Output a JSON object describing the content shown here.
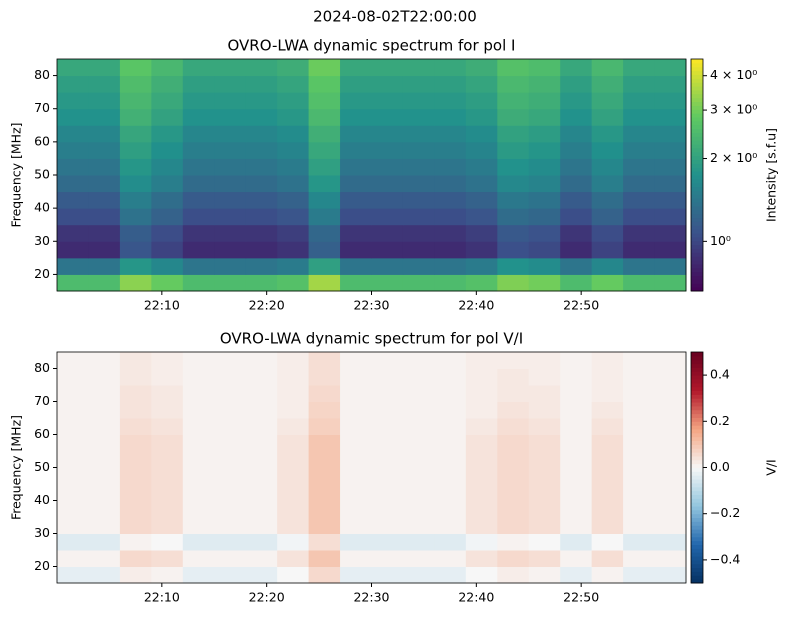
{
  "title": "2024-08-02T22:00:00",
  "chart_data": [
    {
      "type": "heatmap",
      "title": "OVRO-LWA dynamic spectrum for pol I",
      "y_label": "Frequency [MHz]",
      "xlim": [
        "22:00",
        "23:00"
      ],
      "xticks": [
        "22:10",
        "22:20",
        "22:30",
        "22:40",
        "22:50"
      ],
      "ylim": [
        15,
        85
      ],
      "yticks": [
        20,
        30,
        40,
        50,
        60,
        70,
        80
      ],
      "x": [
        "22:00",
        "22:03",
        "22:06",
        "22:09",
        "22:12",
        "22:15",
        "22:18",
        "22:21",
        "22:24",
        "22:27",
        "22:30",
        "22:33",
        "22:36",
        "22:39",
        "22:42",
        "22:45",
        "22:48",
        "22:51",
        "22:54",
        "22:57"
      ],
      "y": [
        15,
        20,
        25,
        30,
        35,
        40,
        45,
        50,
        55,
        60,
        65,
        70,
        75,
        80
      ],
      "z": [
        [
          2.5,
          2.5,
          3.25,
          2.88,
          2.5,
          2.5,
          2.5,
          2.63,
          3.5,
          2.5,
          2.5,
          2.5,
          2.5,
          2.63,
          3.13,
          3.0,
          2.5,
          2.88,
          2.5,
          2.5
        ],
        [
          1.4,
          1.4,
          1.82,
          1.61,
          1.4,
          1.4,
          1.4,
          1.47,
          1.96,
          1.4,
          1.4,
          1.4,
          1.4,
          1.47,
          1.75,
          1.68,
          1.4,
          1.61,
          1.4,
          1.4
        ],
        [
          0.85,
          0.85,
          1.11,
          0.98,
          0.85,
          0.85,
          0.85,
          0.89,
          1.19,
          0.85,
          0.85,
          0.85,
          0.85,
          0.89,
          1.06,
          1.02,
          0.85,
          0.98,
          0.85,
          0.85
        ],
        [
          0.9,
          0.9,
          1.17,
          1.04,
          0.9,
          0.9,
          0.9,
          0.95,
          1.26,
          0.9,
          0.9,
          0.9,
          0.9,
          0.95,
          1.13,
          1.08,
          0.9,
          1.04,
          0.9,
          0.9
        ],
        [
          1.05,
          1.05,
          1.37,
          1.21,
          1.05,
          1.05,
          1.05,
          1.1,
          1.47,
          1.05,
          1.05,
          1.05,
          1.05,
          1.1,
          1.31,
          1.26,
          1.05,
          1.21,
          1.05,
          1.05
        ],
        [
          1.15,
          1.15,
          1.5,
          1.32,
          1.15,
          1.15,
          1.15,
          1.21,
          1.61,
          1.15,
          1.15,
          1.15,
          1.15,
          1.21,
          1.44,
          1.38,
          1.15,
          1.32,
          1.15,
          1.15
        ],
        [
          1.3,
          1.3,
          1.69,
          1.5,
          1.3,
          1.3,
          1.3,
          1.37,
          1.82,
          1.3,
          1.3,
          1.3,
          1.3,
          1.37,
          1.63,
          1.56,
          1.3,
          1.5,
          1.3,
          1.3
        ],
        [
          1.4,
          1.4,
          1.82,
          1.61,
          1.4,
          1.4,
          1.4,
          1.47,
          1.96,
          1.4,
          1.4,
          1.4,
          1.4,
          1.47,
          1.75,
          1.68,
          1.4,
          1.61,
          1.4,
          1.4
        ],
        [
          1.5,
          1.5,
          1.95,
          1.73,
          1.5,
          1.5,
          1.5,
          1.58,
          2.1,
          1.5,
          1.5,
          1.5,
          1.5,
          1.58,
          1.88,
          1.8,
          1.5,
          1.73,
          1.5,
          1.5
        ],
        [
          1.6,
          1.6,
          2.08,
          1.84,
          1.6,
          1.6,
          1.6,
          1.68,
          2.24,
          1.6,
          1.6,
          1.6,
          1.6,
          1.68,
          2.0,
          1.92,
          1.6,
          1.84,
          1.6,
          1.6
        ],
        [
          1.75,
          1.75,
          2.28,
          2.01,
          1.75,
          1.75,
          1.75,
          1.84,
          2.45,
          1.75,
          1.75,
          1.75,
          1.75,
          1.84,
          2.19,
          2.1,
          1.75,
          2.01,
          1.75,
          1.75
        ],
        [
          1.85,
          1.85,
          2.41,
          2.13,
          1.85,
          1.85,
          1.85,
          1.94,
          2.59,
          1.85,
          1.85,
          1.85,
          1.85,
          1.94,
          2.31,
          2.22,
          1.85,
          2.13,
          1.85,
          1.85
        ],
        [
          1.95,
          1.95,
          2.54,
          2.24,
          1.95,
          1.95,
          1.95,
          2.05,
          2.73,
          1.95,
          1.95,
          1.95,
          1.95,
          2.05,
          2.44,
          2.34,
          1.95,
          2.24,
          1.95,
          1.95
        ],
        [
          2.1,
          2.1,
          2.73,
          2.42,
          2.1,
          2.1,
          2.1,
          2.21,
          2.94,
          2.1,
          2.1,
          2.1,
          2.1,
          2.21,
          2.63,
          2.52,
          2.1,
          2.42,
          2.1,
          2.1
        ]
      ],
      "colorbar_label": "Intensity [s.f.u]",
      "clim": [
        0.66,
        4.6
      ],
      "log": true,
      "cticks": [
        {
          "value": 1,
          "label": "10⁰"
        },
        {
          "value": 2,
          "label": "2 × 10⁰"
        },
        {
          "value": 3,
          "label": "3 × 10⁰"
        },
        {
          "value": 4,
          "label": "4 × 10⁰"
        }
      ],
      "colormap": [
        "#440154",
        "#3b528b",
        "#21918c",
        "#5ec962",
        "#fde725"
      ]
    },
    {
      "type": "heatmap",
      "title": "OVRO-LWA dynamic spectrum for pol V/I",
      "y_label": "Frequency [MHz]",
      "xlim": [
        "22:00",
        "23:00"
      ],
      "xticks": [
        "22:10",
        "22:20",
        "22:30",
        "22:40",
        "22:50"
      ],
      "ylim": [
        15,
        85
      ],
      "yticks": [
        20,
        30,
        40,
        50,
        60,
        70,
        80
      ],
      "x": [
        "22:00",
        "22:03",
        "22:06",
        "22:09",
        "22:12",
        "22:15",
        "22:18",
        "22:21",
        "22:24",
        "22:27",
        "22:30",
        "22:33",
        "22:36",
        "22:39",
        "22:42",
        "22:45",
        "22:48",
        "22:51",
        "22:54",
        "22:57"
      ],
      "y": [
        15,
        20,
        25,
        30,
        35,
        40,
        45,
        50,
        55,
        60,
        65,
        70,
        75,
        80
      ],
      "z": [
        [
          -0.03,
          -0.03,
          0.02,
          0.01,
          -0.03,
          -0.03,
          -0.03,
          0,
          0.06,
          -0.03,
          -0.03,
          -0.03,
          -0.03,
          0,
          0.02,
          0.01,
          -0.03,
          0.01,
          -0.03,
          -0.03
        ],
        [
          0.01,
          0.01,
          0.06,
          0.05,
          0.01,
          0.01,
          0.01,
          0.04,
          0.1,
          0.01,
          0.01,
          0.01,
          0.01,
          0.04,
          0.06,
          0.05,
          0.01,
          0.05,
          0.01,
          0.01
        ],
        [
          -0.04,
          -0.04,
          0.01,
          0,
          -0.04,
          -0.04,
          -0.04,
          -0.01,
          0.05,
          -0.04,
          -0.04,
          -0.04,
          -0.04,
          -0.01,
          0.01,
          0,
          -0.04,
          0,
          -0.04,
          -0.04
        ],
        [
          0.01,
          0.01,
          0.06,
          0.05,
          0.01,
          0.01,
          0.01,
          0.04,
          0.1,
          0.01,
          0.01,
          0.01,
          0.01,
          0.04,
          0.06,
          0.05,
          0.01,
          0.05,
          0.01,
          0.01
        ],
        [
          0.01,
          0.01,
          0.06,
          0.05,
          0.01,
          0.01,
          0.01,
          0.04,
          0.1,
          0.01,
          0.01,
          0.01,
          0.01,
          0.04,
          0.06,
          0.05,
          0.01,
          0.05,
          0.01,
          0.01
        ],
        [
          0.01,
          0.01,
          0.06,
          0.05,
          0.01,
          0.01,
          0.01,
          0.04,
          0.1,
          0.01,
          0.01,
          0.01,
          0.01,
          0.04,
          0.06,
          0.05,
          0.01,
          0.05,
          0.01,
          0.01
        ],
        [
          0.01,
          0.01,
          0.06,
          0.05,
          0.01,
          0.01,
          0.01,
          0.04,
          0.1,
          0.01,
          0.01,
          0.01,
          0.01,
          0.04,
          0.06,
          0.05,
          0.01,
          0.05,
          0.01,
          0.01
        ],
        [
          0.01,
          0.01,
          0.06,
          0.05,
          0.01,
          0.01,
          0.01,
          0.04,
          0.1,
          0.01,
          0.01,
          0.01,
          0.01,
          0.04,
          0.06,
          0.05,
          0.01,
          0.05,
          0.01,
          0.01
        ],
        [
          0.01,
          0.01,
          0.06,
          0.05,
          0.01,
          0.01,
          0.01,
          0.04,
          0.1,
          0.01,
          0.01,
          0.01,
          0.01,
          0.04,
          0.06,
          0.05,
          0.01,
          0.05,
          0.01,
          0.01
        ],
        [
          0.01,
          0.01,
          0.05,
          0.04,
          0.01,
          0.01,
          0.01,
          0.03,
          0.08,
          0.01,
          0.01,
          0.01,
          0.01,
          0.03,
          0.05,
          0.04,
          0.01,
          0.04,
          0.01,
          0.01
        ],
        [
          0.01,
          0.01,
          0.04,
          0.03,
          0.01,
          0.01,
          0.01,
          0.02,
          0.07,
          0.01,
          0.01,
          0.01,
          0.01,
          0.02,
          0.04,
          0.03,
          0.01,
          0.03,
          0.01,
          0.01
        ],
        [
          0.01,
          0.01,
          0.04,
          0.03,
          0.01,
          0.01,
          0.01,
          0.02,
          0.06,
          0.01,
          0.01,
          0.01,
          0.01,
          0.02,
          0.03,
          0.03,
          0.01,
          0.02,
          0.01,
          0.01
        ],
        [
          0.01,
          0.01,
          0.03,
          0.02,
          0.01,
          0.01,
          0.01,
          0.02,
          0.05,
          0.01,
          0.01,
          0.01,
          0.01,
          0.02,
          0.03,
          0.02,
          0.01,
          0.02,
          0.01,
          0.01
        ],
        [
          0.01,
          0.01,
          0.03,
          0.02,
          0.01,
          0.01,
          0.01,
          0.02,
          0.05,
          0.01,
          0.01,
          0.01,
          0.01,
          0.02,
          0.02,
          0.02,
          0.01,
          0.02,
          0.01,
          0.01
        ]
      ],
      "colorbar_label": "V/I",
      "clim": [
        -0.5,
        0.5
      ],
      "log": false,
      "cticks": [
        {
          "value": -0.4,
          "label": "−0.4"
        },
        {
          "value": -0.2,
          "label": "−0.2"
        },
        {
          "value": 0,
          "label": "0.0"
        },
        0.2,
        0.4
      ],
      "colormap": [
        "#053061",
        "#2166ac",
        "#92c5de",
        "#f7f7f7",
        "#f4a582",
        "#b2182b",
        "#67001f"
      ]
    }
  ]
}
